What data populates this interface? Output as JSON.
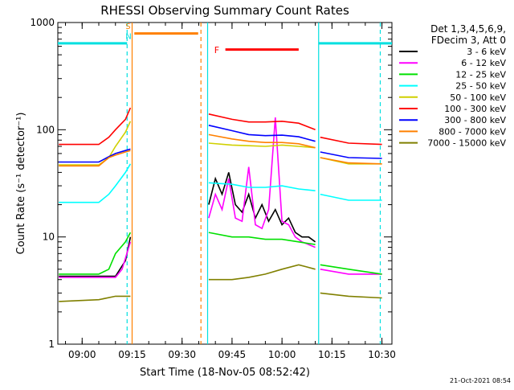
{
  "chart_data": {
    "type": "line",
    "title": "RHESSI Observing Summary Count Rates",
    "xlabel": "Start Time (18-Nov-05 08:52:42)",
    "ylabel": "Count Rate (s⁻¹ detector⁻¹)",
    "yscale": "log",
    "ylim": [
      1,
      1000
    ],
    "xlim_minutes": [
      "08:52:42",
      "10:33:00"
    ],
    "x_ticks": [
      "09:00",
      "09:15",
      "09:30",
      "09:45",
      "10:00",
      "10:15",
      "10:30"
    ],
    "y_ticks": [
      "1",
      "10",
      "100",
      "1000"
    ],
    "legend_header": [
      "Det 1,3,4,5,6,9,",
      "FDecim 3, Att 0"
    ],
    "legend_position": "right",
    "timestamp": "21-Oct-2021 08:54",
    "flags": [
      {
        "label": "S",
        "color": "#ff8000",
        "start": "09:15:40",
        "end": "09:34:50"
      },
      {
        "label": "N",
        "color": "#00e0e0",
        "start": "08:52:42",
        "end": "09:13:30"
      },
      {
        "label": "N",
        "color": "#00e0e0",
        "start": "10:11:00",
        "end": "10:33:00"
      },
      {
        "label": "F",
        "color": "#ff0000",
        "start": "09:43:00",
        "end": "10:05:00"
      }
    ],
    "flag_labels": {
      "s": "S",
      "n": "N",
      "f": "F"
    },
    "vlines": [
      {
        "time": "09:13:30",
        "color": "#00e0e0",
        "style": "dashed"
      },
      {
        "time": "09:15:00",
        "color": "#ff8000",
        "style": "solid"
      },
      {
        "time": "09:35:40",
        "color": "#ff8000",
        "style": "dashed"
      },
      {
        "time": "09:37:40",
        "color": "#00e0e0",
        "style": "solid"
      },
      {
        "time": "10:11:00",
        "color": "#00e0e0",
        "style": "solid"
      },
      {
        "time": "10:29:30",
        "color": "#00e0e0",
        "style": "dashed"
      }
    ],
    "series": [
      {
        "name": "3 - 6 keV",
        "color": "#000000",
        "segments": [
          [
            [
              "08:53",
              4.3
            ],
            [
              "09:05",
              4.3
            ],
            [
              "09:10",
              4.3
            ],
            [
              "09:13",
              6
            ],
            [
              "09:14:30",
              10
            ]
          ],
          [
            [
              "09:38",
              20
            ],
            [
              "09:40",
              35
            ],
            [
              "09:42",
              25
            ],
            [
              "09:44",
              40
            ],
            [
              "09:46",
              20
            ],
            [
              "09:48",
              17
            ],
            [
              "09:50",
              25
            ],
            [
              "09:52",
              15
            ],
            [
              "09:54",
              20
            ],
            [
              "09:56",
              14
            ],
            [
              "09:58",
              18
            ],
            [
              "10:00",
              13
            ],
            [
              "10:02",
              15
            ],
            [
              "10:04",
              11
            ],
            [
              "10:06",
              10
            ],
            [
              "10:08",
              10
            ],
            [
              "10:10",
              9
            ]
          ]
        ]
      },
      {
        "name": "6 - 12 keV",
        "color": "#ff00ff",
        "segments": [
          [
            [
              "08:53",
              4.2
            ],
            [
              "09:05",
              4.2
            ],
            [
              "09:10",
              4.2
            ],
            [
              "09:12",
              5
            ],
            [
              "09:14:30",
              9
            ]
          ],
          [
            [
              "09:38",
              15
            ],
            [
              "09:40",
              25
            ],
            [
              "09:42",
              18
            ],
            [
              "09:44",
              35
            ],
            [
              "09:46",
              15
            ],
            [
              "09:48",
              14
            ],
            [
              "09:50",
              45
            ],
            [
              "09:52",
              13
            ],
            [
              "09:54",
              12
            ],
            [
              "09:56",
              18
            ],
            [
              "09:58",
              130
            ],
            [
              "10:00",
              14
            ],
            [
              "10:02",
              13
            ],
            [
              "10:04",
              10
            ],
            [
              "10:06",
              9
            ],
            [
              "10:08",
              8.5
            ],
            [
              "10:10",
              8
            ]
          ],
          [
            [
              "10:11:30",
              5
            ],
            [
              "10:20",
              4.5
            ],
            [
              "10:30",
              4.5
            ]
          ]
        ]
      },
      {
        "name": "12 - 25 keV",
        "color": "#00e000",
        "segments": [
          [
            [
              "08:53",
              4.5
            ],
            [
              "09:05",
              4.5
            ],
            [
              "09:08",
              5
            ],
            [
              "09:10",
              7
            ],
            [
              "09:13",
              9
            ],
            [
              "09:14:30",
              11
            ]
          ],
          [
            [
              "09:38",
              11
            ],
            [
              "09:45",
              10
            ],
            [
              "09:50",
              10
            ],
            [
              "09:55",
              9.5
            ],
            [
              "10:00",
              9.5
            ],
            [
              "10:05",
              9
            ],
            [
              "10:10",
              8.5
            ]
          ],
          [
            [
              "10:11:30",
              5.5
            ],
            [
              "10:20",
              5
            ],
            [
              "10:30",
              4.5
            ]
          ]
        ]
      },
      {
        "name": "25 - 50 keV",
        "color": "#00ffff",
        "segments": [
          [
            [
              "08:53",
              21
            ],
            [
              "09:05",
              21
            ],
            [
              "09:08",
              25
            ],
            [
              "09:10",
              30
            ],
            [
              "09:13",
              40
            ],
            [
              "09:14:30",
              48
            ]
          ],
          [
            [
              "09:38",
              32
            ],
            [
              "09:45",
              31
            ],
            [
              "09:50",
              29
            ],
            [
              "09:55",
              29
            ],
            [
              "10:00",
              30
            ],
            [
              "10:05",
              28
            ],
            [
              "10:10",
              27
            ]
          ],
          [
            [
              "10:11:30",
              25
            ],
            [
              "10:20",
              22
            ],
            [
              "10:30",
              22
            ]
          ]
        ]
      },
      {
        "name": "50 - 100 keV",
        "color": "#d0d000",
        "segments": [
          [
            [
              "08:53",
              47
            ],
            [
              "09:05",
              47
            ],
            [
              "09:08",
              55
            ],
            [
              "09:10",
              70
            ],
            [
              "09:13",
              95
            ],
            [
              "09:14:30",
              120
            ]
          ],
          [
            [
              "09:38",
              75
            ],
            [
              "09:45",
              72
            ],
            [
              "09:50",
              71
            ],
            [
              "09:55",
              70
            ],
            [
              "10:00",
              72
            ],
            [
              "10:05",
              70
            ],
            [
              "10:10",
              68
            ]
          ],
          [
            [
              "10:11:30",
              55
            ],
            [
              "10:20",
              48
            ],
            [
              "10:30",
              48
            ]
          ]
        ]
      },
      {
        "name": "100 - 300 keV",
        "color": "#ff0000",
        "segments": [
          [
            [
              "08:53",
              73
            ],
            [
              "09:05",
              73
            ],
            [
              "09:08",
              85
            ],
            [
              "09:10",
              100
            ],
            [
              "09:13",
              125
            ],
            [
              "09:14:30",
              160
            ]
          ],
          [
            [
              "09:38",
              140
            ],
            [
              "09:45",
              125
            ],
            [
              "09:50",
              118
            ],
            [
              "09:55",
              118
            ],
            [
              "10:00",
              120
            ],
            [
              "10:05",
              115
            ],
            [
              "10:10",
              100
            ]
          ],
          [
            [
              "10:11:30",
              85
            ],
            [
              "10:20",
              75
            ],
            [
              "10:30",
              73
            ]
          ]
        ]
      },
      {
        "name": "300 - 800 keV",
        "color": "#0000ff",
        "segments": [
          [
            [
              "08:53",
              50
            ],
            [
              "09:05",
              50
            ],
            [
              "09:08",
              56
            ],
            [
              "09:10",
              60
            ],
            [
              "09:13",
              64
            ],
            [
              "09:14:30",
              66
            ]
          ],
          [
            [
              "09:38",
              110
            ],
            [
              "09:45",
              98
            ],
            [
              "09:50",
              90
            ],
            [
              "09:55",
              88
            ],
            [
              "10:00",
              89
            ],
            [
              "10:05",
              86
            ],
            [
              "10:10",
              78
            ]
          ],
          [
            [
              "10:11:30",
              62
            ],
            [
              "10:20",
              55
            ],
            [
              "10:30",
              54
            ]
          ]
        ]
      },
      {
        "name": "800 - 7000 keV",
        "color": "#ff8000",
        "segments": [
          [
            [
              "08:53",
              46
            ],
            [
              "09:05",
              46
            ],
            [
              "09:08",
              55
            ],
            [
              "09:10",
              58
            ],
            [
              "09:13",
              62
            ],
            [
              "09:14:30",
              64
            ]
          ],
          [
            [
              "09:38",
              90
            ],
            [
              "09:45",
              82
            ],
            [
              "09:50",
              78
            ],
            [
              "09:55",
              76
            ],
            [
              "10:00",
              76
            ],
            [
              "10:05",
              74
            ],
            [
              "10:10",
              68
            ]
          ],
          [
            [
              "10:11:30",
              55
            ],
            [
              "10:20",
              49
            ],
            [
              "10:30",
              48
            ]
          ]
        ]
      },
      {
        "name": "7000 - 15000 keV",
        "color": "#808000",
        "segments": [
          [
            [
              "08:53",
              2.5
            ],
            [
              "09:05",
              2.6
            ],
            [
              "09:10",
              2.8
            ],
            [
              "09:14:30",
              2.8
            ]
          ],
          [
            [
              "09:38",
              4
            ],
            [
              "09:45",
              4
            ],
            [
              "09:50",
              4.2
            ],
            [
              "09:55",
              4.5
            ],
            [
              "10:00",
              5
            ],
            [
              "10:05",
              5.5
            ],
            [
              "10:10",
              5
            ]
          ],
          [
            [
              "10:11:30",
              3
            ],
            [
              "10:20",
              2.8
            ],
            [
              "10:30",
              2.7
            ]
          ]
        ]
      }
    ]
  }
}
